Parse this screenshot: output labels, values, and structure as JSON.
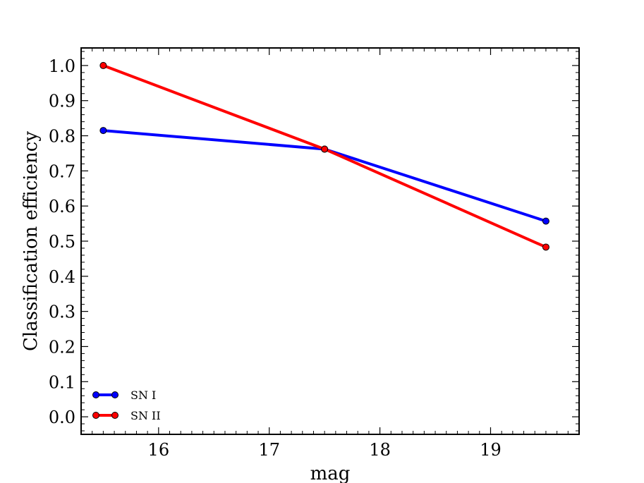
{
  "chart_data": {
    "type": "line",
    "title": "",
    "xlabel": "mag",
    "ylabel": "Classification efficiency",
    "xlim": [
      15.3,
      19.8
    ],
    "ylim": [
      -0.05,
      1.05
    ],
    "xticks": [
      16,
      17,
      18,
      19
    ],
    "yticks": [
      0.0,
      0.1,
      0.2,
      0.3,
      0.4,
      0.5,
      0.6,
      0.7,
      0.8,
      0.9,
      1.0
    ],
    "xtick_labels": [
      "16",
      "17",
      "18",
      "19"
    ],
    "ytick_labels": [
      "0.0",
      "0.1",
      "0.2",
      "0.3",
      "0.4",
      "0.5",
      "0.6",
      "0.7",
      "0.8",
      "0.9",
      "1.0"
    ],
    "grid": false,
    "legend_position": "lower-left",
    "x": [
      15.5,
      17.5,
      19.5
    ],
    "series": [
      {
        "name": "SN I",
        "color": "#0000ff",
        "values": [
          0.815,
          0.762,
          0.557
        ]
      },
      {
        "name": "SN II",
        "color": "#ff0000",
        "values": [
          1.0,
          0.762,
          0.483
        ]
      }
    ]
  }
}
